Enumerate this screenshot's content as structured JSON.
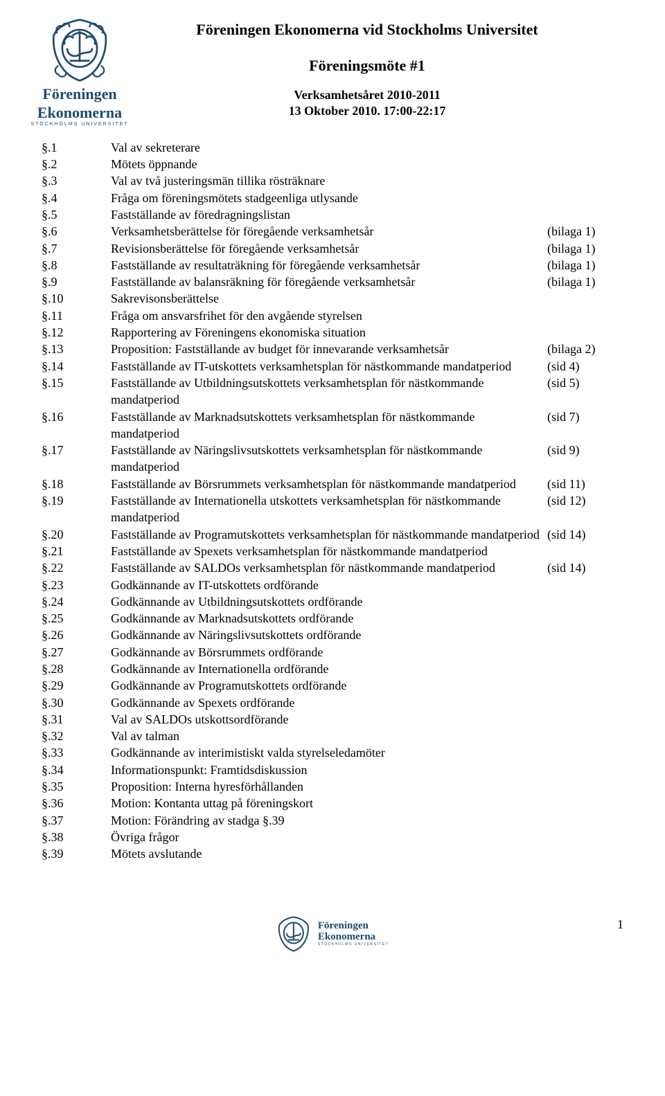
{
  "logo": {
    "org_line1": "Föreningen",
    "org_line2": "Ekonomerna",
    "org_sub": "STOCKHOLMS UNIVERSITET",
    "crest_stroke": "#1e4a6d",
    "crest_fill": "#ffffff"
  },
  "header": {
    "title": "Föreningen Ekonomerna vid Stockholms Universitet",
    "subtitle": "Föreningsmöte #1",
    "line1": "Verksamhetsåret 2010-2011",
    "line2": "13 Oktober 2010. 17:00-22:17"
  },
  "agenda": [
    {
      "num": "§.1",
      "text": "Val av sekreterare",
      "ref": ""
    },
    {
      "num": "§.2",
      "text": "Mötets öppnande",
      "ref": ""
    },
    {
      "num": "§.3",
      "text": "Val av två justeringsmän tillika rösträknare",
      "ref": ""
    },
    {
      "num": "§.4",
      "text": "Fråga om föreningsmötets stadgeenliga utlysande",
      "ref": ""
    },
    {
      "num": "§.5",
      "text": "Fastställande av föredragningslistan",
      "ref": ""
    },
    {
      "num": "§.6",
      "text": "Verksamhetsberättelse för föregående verksamhetsår",
      "ref": "(bilaga 1)"
    },
    {
      "num": "§.7",
      "text": "Revisionsberättelse för föregående verksamhetsår",
      "ref": "(bilaga 1)"
    },
    {
      "num": "§.8",
      "text": "Fastställande av resultaträkning för föregående verksamhetsår",
      "ref": "(bilaga 1)"
    },
    {
      "num": "§.9",
      "text": "Fastställande av balansräkning för föregående verksamhetsår",
      "ref": "(bilaga 1)"
    },
    {
      "num": "§.10",
      "text": "Sakrevisonsberättelse",
      "ref": ""
    },
    {
      "num": "§.11",
      "text": "Fråga om ansvarsfrihet för den avgående styrelsen",
      "ref": ""
    },
    {
      "num": "§.12",
      "text": "Rapportering av Föreningens ekonomiska situation",
      "ref": ""
    },
    {
      "num": "§.13",
      "text": "Proposition: Fastställande av budget för innevarande verksamhetsår",
      "ref": "(bilaga 2)"
    },
    {
      "num": "§.14",
      "text": "Fastställande av IT-utskottets verksamhetsplan för nästkommande mandatperiod",
      "ref": "(sid 4)"
    },
    {
      "num": "§.15",
      "text": "Fastställande av Utbildningsutskottets verksamhetsplan för nästkommande mandatperiod",
      "ref": "(sid 5)"
    },
    {
      "num": "§.16",
      "text": "Fastställande av Marknadsutskottets verksamhetsplan för nästkommande mandatperiod",
      "ref": "(sid 7)"
    },
    {
      "num": "§.17",
      "text": "Fastställande av Näringslivsutskottets verksamhetsplan för nästkommande mandatperiod",
      "ref": "(sid 9)"
    },
    {
      "num": "§.18",
      "text": "Fastställande av Börsrummets verksamhetsplan för nästkommande mandatperiod",
      "ref": "(sid 11)"
    },
    {
      "num": "§.19",
      "text": "Fastställande av Internationella utskottets verksamhetsplan för nästkommande mandatperiod",
      "ref": "(sid 12)"
    },
    {
      "num": "§.20",
      "text": "Fastställande av Programutskottets verksamhetsplan för nästkommande mandatperiod",
      "ref": "(sid 14)"
    },
    {
      "num": "§.21",
      "text": "Fastställande av Spexets verksamhetsplan för nästkommande mandatperiod",
      "ref": ""
    },
    {
      "num": "§.22",
      "text": "Fastställande av SALDOs verksamhetsplan för nästkommande mandatperiod",
      "ref": "(sid 14)"
    },
    {
      "num": "§.23",
      "text": "Godkännande av IT-utskottets ordförande",
      "ref": ""
    },
    {
      "num": "§.24",
      "text": "Godkännande av Utbildningsutskottets ordförande",
      "ref": ""
    },
    {
      "num": "§.25",
      "text": "Godkännande av Marknadsutskottets ordförande",
      "ref": ""
    },
    {
      "num": "§.26",
      "text": "Godkännande av Näringslivsutskottets ordförande",
      "ref": ""
    },
    {
      "num": "§.27",
      "text": "Godkännande av Börsrummets ordförande",
      "ref": ""
    },
    {
      "num": "§.28",
      "text": "Godkännande av Internationella ordförande",
      "ref": ""
    },
    {
      "num": "§.29",
      "text": "Godkännande av Programutskottets ordförande",
      "ref": ""
    },
    {
      "num": "§.30",
      "text": "Godkännande av Spexets ordförande",
      "ref": ""
    },
    {
      "num": "§.31",
      "text": "Val av SALDOs utskottsordförande",
      "ref": ""
    },
    {
      "num": "§.32",
      "text": "Val av talman",
      "ref": ""
    },
    {
      "num": "§.33",
      "text": "Godkännande av interimistiskt valda styrelseledamöter",
      "ref": ""
    },
    {
      "num": "§.34",
      "text": "Informationspunkt: Framtidsdiskussion",
      "ref": ""
    },
    {
      "num": "§.35",
      "text": "Proposition: Interna hyresförhållanden",
      "ref": ""
    },
    {
      "num": "§.36",
      "text": "Motion: Kontanta uttag på föreningskort",
      "ref": ""
    },
    {
      "num": "§.37",
      "text": "Motion: Förändring av stadga §.39",
      "ref": ""
    },
    {
      "num": "§.38",
      "text": "Övriga frågor",
      "ref": ""
    },
    {
      "num": "§.39",
      "text": "Mötets avslutande",
      "ref": ""
    }
  ],
  "page_number": "1"
}
